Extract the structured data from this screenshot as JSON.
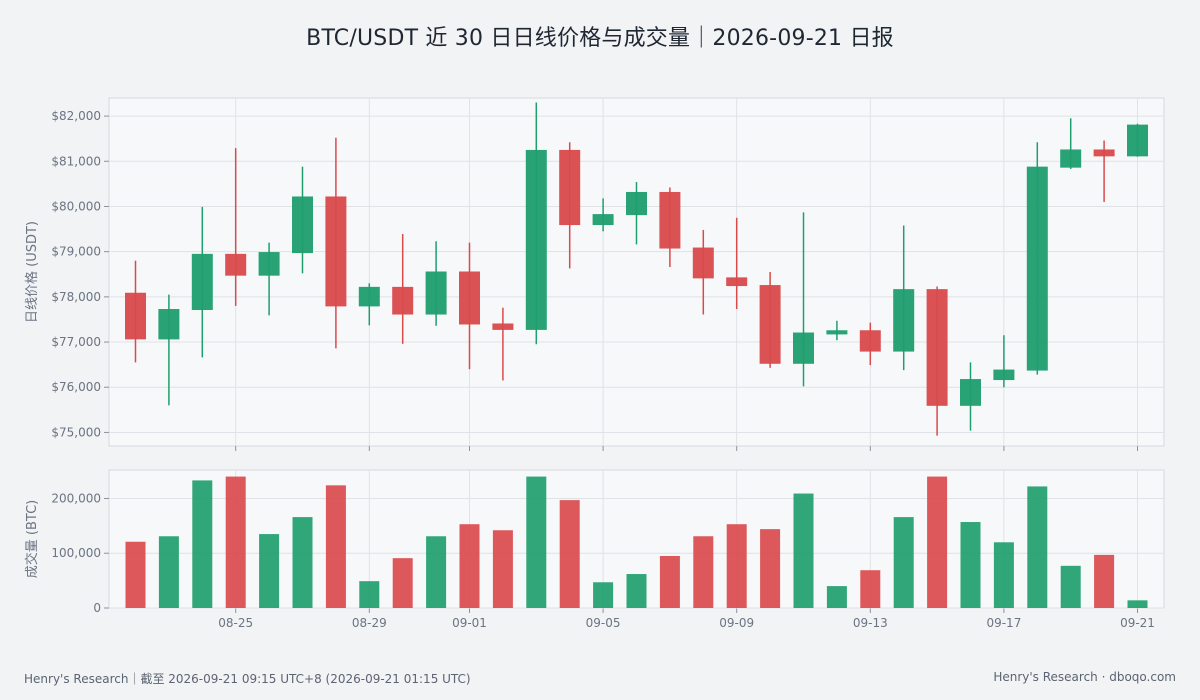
{
  "title": "BTC/USDT 近 30 日日线价格与成交量｜2026-09-21 日报",
  "footer": {
    "left": "Henry's Research｜截至 2026-09-21 09:15 UTC+8 (2026-09-21 01:15 UTC)",
    "right": "Henry's Research · dboqo.com"
  },
  "colors": {
    "up": "#1f9e6e",
    "down": "#d94a4c",
    "grid": "#dfe2e6",
    "panel": "#f7f8fa"
  },
  "chart_data": [
    {
      "type": "candlestick",
      "ylabel": "日线价格 (USDT)",
      "ylim": [
        74700,
        82400
      ],
      "yticks": [
        75000,
        76000,
        77000,
        78000,
        79000,
        80000,
        81000,
        82000
      ],
      "ytick_labels": [
        "$75,000",
        "$76,000",
        "$77,000",
        "$78,000",
        "$79,000",
        "$80,000",
        "$81,000",
        "$82,000"
      ],
      "grid": true,
      "dates": [
        "08-22",
        "08-23",
        "08-24",
        "08-25",
        "08-26",
        "08-27",
        "08-28",
        "08-29",
        "08-30",
        "08-31",
        "09-01",
        "09-02",
        "09-03",
        "09-04",
        "09-05",
        "09-06",
        "09-07",
        "09-08",
        "09-09",
        "09-10",
        "09-11",
        "09-12",
        "09-13",
        "09-14",
        "09-15",
        "09-16",
        "09-17",
        "09-18",
        "09-19",
        "09-20",
        "09-21"
      ],
      "x_tick_labels": [
        "08-25",
        "08-29",
        "09-01",
        "09-05",
        "09-09",
        "09-13",
        "09-17",
        "09-21"
      ],
      "ohlc": [
        {
          "date": "08-22",
          "open": 78080,
          "high": 78800,
          "low": 76550,
          "close": 77070
        },
        {
          "date": "08-23",
          "open": 77070,
          "high": 78050,
          "low": 75600,
          "close": 77720
        },
        {
          "date": "08-24",
          "open": 77720,
          "high": 79990,
          "low": 76660,
          "close": 78940
        },
        {
          "date": "08-25",
          "open": 78940,
          "high": 81290,
          "low": 77800,
          "close": 78480
        },
        {
          "date": "08-26",
          "open": 78480,
          "high": 79200,
          "low": 77590,
          "close": 78980
        },
        {
          "date": "08-27",
          "open": 78980,
          "high": 80880,
          "low": 78520,
          "close": 80210
        },
        {
          "date": "08-28",
          "open": 80210,
          "high": 81520,
          "low": 76860,
          "close": 77800
        },
        {
          "date": "08-29",
          "open": 77800,
          "high": 78300,
          "low": 77370,
          "close": 78210
        },
        {
          "date": "08-30",
          "open": 78210,
          "high": 79390,
          "low": 76960,
          "close": 77620
        },
        {
          "date": "08-31",
          "open": 77620,
          "high": 79230,
          "low": 77360,
          "close": 78550
        },
        {
          "date": "09-01",
          "open": 78550,
          "high": 79200,
          "low": 76400,
          "close": 77400
        },
        {
          "date": "09-02",
          "open": 77400,
          "high": 77760,
          "low": 76150,
          "close": 77280
        },
        {
          "date": "09-03",
          "open": 77280,
          "high": 82300,
          "low": 76950,
          "close": 81240
        },
        {
          "date": "09-04",
          "open": 81240,
          "high": 81420,
          "low": 78630,
          "close": 79600
        },
        {
          "date": "09-05",
          "open": 79600,
          "high": 80180,
          "low": 79450,
          "close": 79820
        },
        {
          "date": "09-06",
          "open": 79820,
          "high": 80540,
          "low": 79160,
          "close": 80310
        },
        {
          "date": "09-07",
          "open": 80310,
          "high": 80420,
          "low": 78660,
          "close": 79080
        },
        {
          "date": "09-08",
          "open": 79080,
          "high": 79480,
          "low": 77610,
          "close": 78420
        },
        {
          "date": "09-09",
          "open": 78420,
          "high": 79750,
          "low": 77730,
          "close": 78250
        },
        {
          "date": "09-10",
          "open": 78250,
          "high": 78550,
          "low": 76430,
          "close": 76530
        },
        {
          "date": "09-11",
          "open": 76530,
          "high": 79870,
          "low": 76020,
          "close": 77200
        },
        {
          "date": "09-12",
          "open": 77180,
          "high": 77470,
          "low": 77040,
          "close": 77250
        },
        {
          "date": "09-13",
          "open": 77250,
          "high": 77430,
          "low": 76490,
          "close": 76800
        },
        {
          "date": "09-14",
          "open": 76800,
          "high": 79580,
          "low": 76380,
          "close": 78160
        },
        {
          "date": "09-15",
          "open": 78160,
          "high": 78230,
          "low": 74930,
          "close": 75600
        },
        {
          "date": "09-16",
          "open": 75600,
          "high": 76550,
          "low": 75040,
          "close": 76170
        },
        {
          "date": "09-17",
          "open": 76170,
          "high": 77150,
          "low": 76000,
          "close": 76380
        },
        {
          "date": "09-18",
          "open": 76380,
          "high": 81420,
          "low": 76280,
          "close": 80870
        },
        {
          "date": "09-19",
          "open": 80870,
          "high": 81950,
          "low": 80830,
          "close": 81250
        },
        {
          "date": "09-20",
          "open": 81250,
          "high": 81460,
          "low": 80100,
          "close": 81120
        },
        {
          "date": "09-21",
          "open": 81120,
          "high": 81830,
          "low": 81100,
          "close": 81800
        }
      ]
    },
    {
      "type": "bar",
      "ylabel": "成交量 (BTC)",
      "ylim": [
        0,
        252000
      ],
      "yticks": [
        0,
        100000,
        200000
      ],
      "ytick_labels": [
        "0",
        "100,000",
        "200,000"
      ],
      "grid": true,
      "categories": [
        "08-22",
        "08-23",
        "08-24",
        "08-25",
        "08-26",
        "08-27",
        "08-28",
        "08-29",
        "08-30",
        "08-31",
        "09-01",
        "09-02",
        "09-03",
        "09-04",
        "09-05",
        "09-06",
        "09-07",
        "09-08",
        "09-09",
        "09-10",
        "09-11",
        "09-12",
        "09-13",
        "09-14",
        "09-15",
        "09-16",
        "09-17",
        "09-18",
        "09-19",
        "09-20",
        "09-21"
      ],
      "values": [
        121000,
        131000,
        233000,
        240000,
        135000,
        166000,
        224000,
        49000,
        91000,
        131000,
        153000,
        142000,
        240000,
        197000,
        47000,
        62000,
        95000,
        131000,
        153000,
        144000,
        209000,
        40000,
        69000,
        166000,
        240000,
        157000,
        120000,
        222000,
        77000,
        97000,
        14000
      ]
    }
  ]
}
